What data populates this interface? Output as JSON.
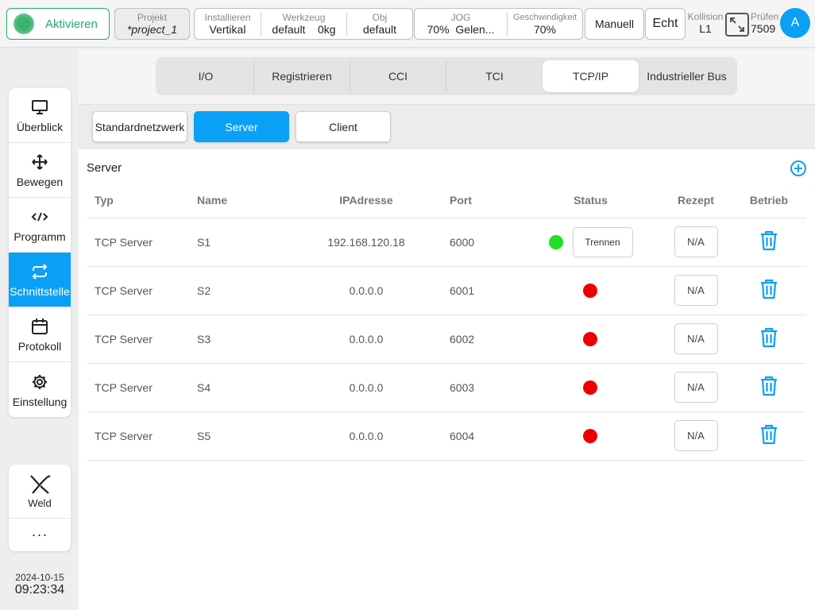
{
  "topbar": {
    "activate_label": "Aktivieren",
    "project": {
      "caption": "Projekt",
      "value": "*project_1"
    },
    "install": {
      "caption": "Installieren",
      "value": "Vertikal"
    },
    "tool": {
      "caption": "Werkzeug",
      "value": "default",
      "weight": "0kg"
    },
    "obj": {
      "caption": "Obj",
      "value": "default"
    },
    "jog": {
      "caption": "JOG",
      "value": "70%",
      "mode": "Gelen..."
    },
    "speed": {
      "caption": "Geschwindigkeit",
      "value": "70%"
    },
    "manual_label": "Manuell",
    "real_label": "Echt",
    "collision": {
      "caption": "Kollision",
      "value": "L1"
    },
    "check": {
      "caption": "Prüfen",
      "value": "7509"
    },
    "avatar_letter": "A"
  },
  "sidebar": {
    "items": [
      {
        "label": "Überblick",
        "icon": "monitor-icon"
      },
      {
        "label": "Bewegen",
        "icon": "move-icon"
      },
      {
        "label": "Programm",
        "icon": "code-icon"
      },
      {
        "label": "Schnittstelle",
        "icon": "swap-icon"
      },
      {
        "label": "Protokoll",
        "icon": "calendar-icon"
      },
      {
        "label": "Einstellung",
        "icon": "gear-icon"
      }
    ],
    "weld_label": "Weld",
    "more_label": "···"
  },
  "clock": {
    "date": "2024-10-15",
    "time": "09:23:34"
  },
  "tabs": [
    "I/O",
    "Registrieren",
    "CCI",
    "TCI",
    "TCP/IP",
    "Industrieller Bus"
  ],
  "active_tab": "TCP/IP",
  "subtabs": [
    "Standardnetzwerk",
    "Server",
    "Client"
  ],
  "active_subtab": "Server",
  "section_title": "Server",
  "table": {
    "headers": [
      "Typ",
      "Name",
      "IPAdresse",
      "Port",
      "Status",
      "Rezept",
      "Betrieb"
    ],
    "rows": [
      {
        "typ": "TCP Server",
        "name": "S1",
        "ip": "192.168.120.18",
        "port": "6000",
        "status": "connected",
        "action": "Trennen",
        "rezept": "N/A"
      },
      {
        "typ": "TCP Server",
        "name": "S2",
        "ip": "0.0.0.0",
        "port": "6001",
        "status": "disconnected",
        "action": "",
        "rezept": "N/A"
      },
      {
        "typ": "TCP Server",
        "name": "S3",
        "ip": "0.0.0.0",
        "port": "6002",
        "status": "disconnected",
        "action": "",
        "rezept": "N/A"
      },
      {
        "typ": "TCP Server",
        "name": "S4",
        "ip": "0.0.0.0",
        "port": "6003",
        "status": "disconnected",
        "action": "",
        "rezept": "N/A"
      },
      {
        "typ": "TCP Server",
        "name": "S5",
        "ip": "0.0.0.0",
        "port": "6004",
        "status": "disconnected",
        "action": "",
        "rezept": "N/A"
      }
    ]
  },
  "colors": {
    "accent": "#0aa0f6",
    "activate_green": "#27a86a",
    "status_on": "#22e022",
    "status_off": "#ee0000"
  }
}
